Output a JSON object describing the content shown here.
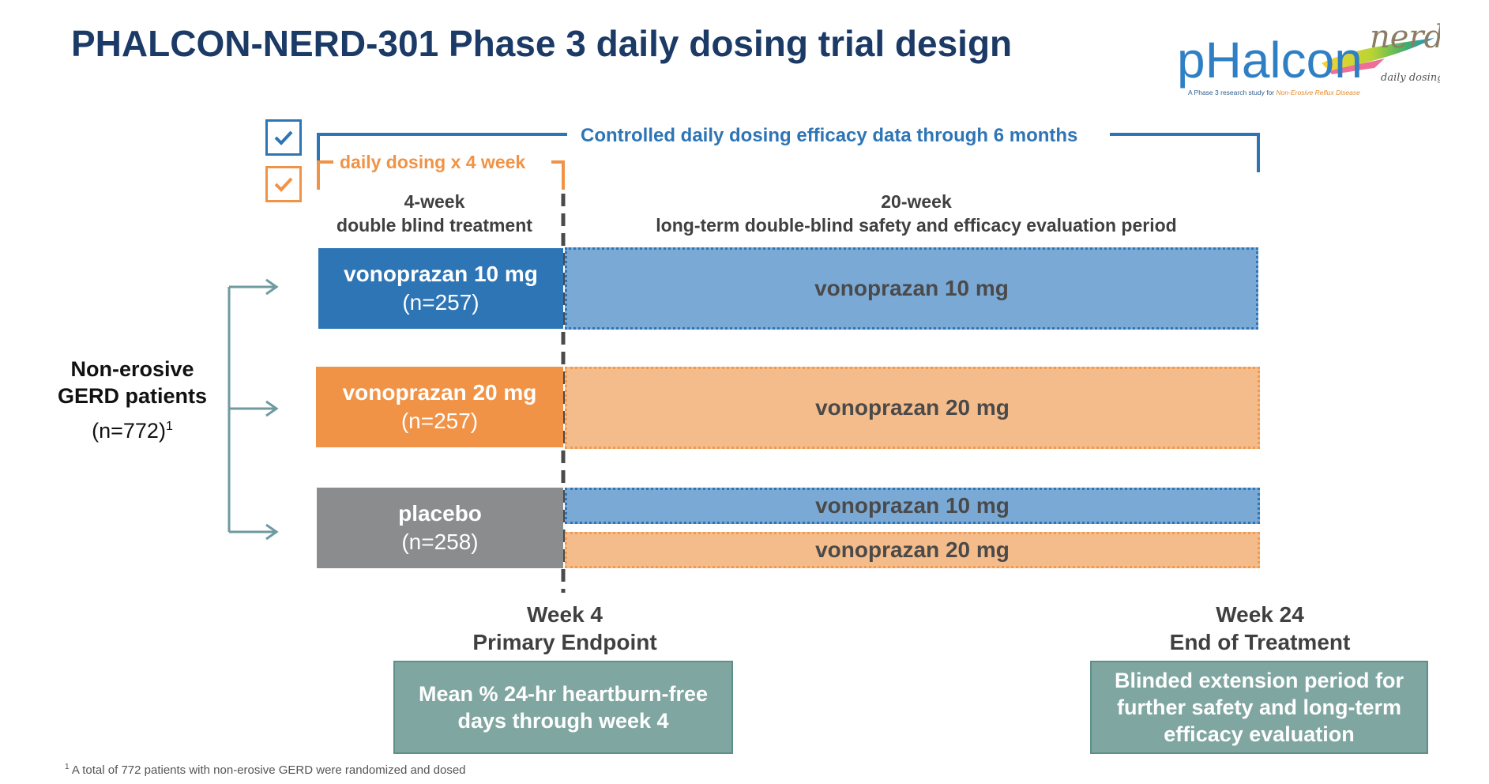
{
  "title": "PHALCON-NERD-301 Phase 3 daily dosing trial design",
  "logo": {
    "brand": "pHalcon",
    "sub": "nerd",
    "tagline": "daily dosing",
    "caption_prefix": "A Phase 3 research study for ",
    "caption_highlight": "Non-Erosive Reflux Disease"
  },
  "brackets": {
    "controlled_label": "Controlled daily dosing efficacy data through 6 months",
    "daily_label": "daily dosing x 4 week"
  },
  "periods": {
    "left_line1": "4-week",
    "left_line2": "double blind treatment",
    "right_line1": "20-week",
    "right_line2": "long-term double-blind safety and efficacy evaluation period"
  },
  "population": {
    "line1": "Non-erosive",
    "line2": "GERD patients",
    "n": "(n=772)",
    "footnote_mark": "1"
  },
  "arms": [
    {
      "name": "vonoprazan 10 mg",
      "n": "(n=257)",
      "color": "#2e75b6"
    },
    {
      "name": "vonoprazan 20 mg",
      "n": "(n=257)",
      "color": "#f09346"
    },
    {
      "name": "placebo",
      "n": "(n=258)",
      "color": "#8b8c8e"
    }
  ],
  "extensions": {
    "arm1": "vonoprazan 10 mg",
    "arm2": "vonoprazan 20 mg",
    "arm3a": "vonoprazan 10 mg",
    "arm3b": "vonoprazan 20 mg"
  },
  "milestones": {
    "week4_line1": "Week 4",
    "week4_line2": "Primary Endpoint",
    "week24_line1": "Week 24",
    "week24_line2": "End of Treatment"
  },
  "endpoints": {
    "primary_line1": "Mean % 24-hr heartburn-free",
    "primary_line2": "days through week 4",
    "extension_line1": "Blinded extension period for",
    "extension_line2": "further safety and long-term",
    "extension_line3": "efficacy evaluation"
  },
  "footnote": {
    "mark": "1",
    "text": " A total of 772 patients with non-erosive GERD were randomized and dosed"
  },
  "colors": {
    "title": "#1b3a66",
    "blue": "#2e75b6",
    "orange": "#f09346",
    "teal": "#7fa6a0",
    "arrow": "#6e9aa0"
  }
}
